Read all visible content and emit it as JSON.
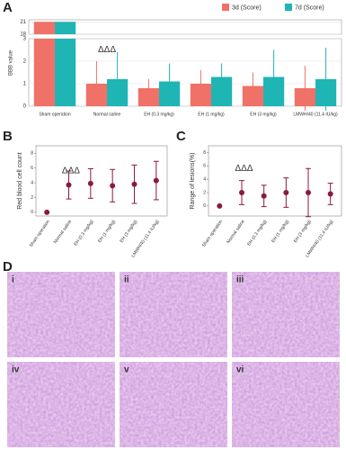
{
  "chart_data": [
    {
      "type": "bar",
      "panel": "A",
      "ylabel": "BBB value",
      "categories": [
        "Sham operation",
        "Normal saline",
        "EH (0.3 mg/kg)",
        "EH (1 mg/kg)",
        "EH (3 mg/kg)",
        "LMWH/40 (11.4 IU/kg)"
      ],
      "series": [
        {
          "name": "3d (Score)",
          "color": "#f07167",
          "values": [
            21,
            1,
            0.8,
            1,
            0.9,
            0.8
          ],
          "errors": [
            0,
            1,
            0.4,
            0.6,
            0.6,
            1
          ]
        },
        {
          "name": "7d (Score)",
          "color": "#1fb5b5",
          "values": [
            21,
            1.2,
            1.1,
            1.3,
            1.3,
            1.2
          ],
          "errors": [
            0,
            1.2,
            0.8,
            0.6,
            1.2,
            1.4
          ]
        }
      ],
      "ylim": [
        0,
        21.5
      ],
      "axis_break": [
        3,
        18
      ],
      "yticks": [
        0,
        1,
        2,
        3,
        18,
        21
      ],
      "grid": true,
      "legend": "top-right",
      "annotation": "ΔΔΔ"
    },
    {
      "type": "errorbar",
      "panel": "B",
      "ylabel": "Red blood cell count",
      "categories": [
        "Sham operation",
        "Normal saline",
        "EH (0.3 mg/kg)",
        "EH (1 mg/kg)",
        "EH (3 mg/kg)",
        "LMWH/40 (11.4 IU/kg)"
      ],
      "values": [
        0,
        3.7,
        3.9,
        3.6,
        3.8,
        4.3
      ],
      "errors": [
        0,
        1.9,
        2,
        2.2,
        2.6,
        2.6
      ],
      "color": "#8b1a3a",
      "ylim": [
        -0.5,
        9
      ],
      "yticks": [
        0,
        2,
        4,
        6,
        8
      ],
      "annotation": "ΔΔΔ"
    },
    {
      "type": "errorbar",
      "panel": "C",
      "ylabel": "Range of lesions(%)",
      "categories": [
        "Sham operation",
        "Normal saline",
        "EH (0.3 mg/kg)",
        "EH (1 mg/kg)",
        "EH (3 mg/kg)",
        "LMWH/40 (11.4 IU/kg)"
      ],
      "values": [
        0,
        2,
        1.5,
        2,
        2,
        1.8
      ],
      "errors": [
        0,
        1.8,
        1.6,
        2.2,
        3.6,
        1.6
      ],
      "color": "#8b1a3a",
      "ylim": [
        -1.5,
        9
      ],
      "yticks": [
        0,
        2,
        4,
        6,
        8
      ],
      "annotation": "ΔΔΔ"
    }
  ],
  "panel_d": {
    "label": "D",
    "images": [
      "i",
      "ii",
      "iii",
      "iv",
      "v",
      "vi"
    ]
  }
}
